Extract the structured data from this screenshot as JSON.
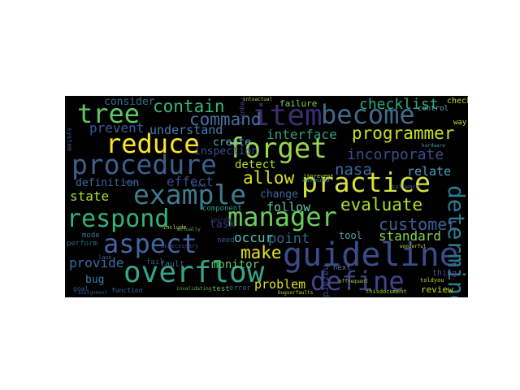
{
  "words": [
    {
      "text": "guideline",
      "color": "#3b4c8c"
    },
    {
      "text": "overflow",
      "color": "#37a48a"
    },
    {
      "text": "procedure",
      "color": "#3c5f8d"
    },
    {
      "text": "forget",
      "color": "#9ad84a"
    },
    {
      "text": "item",
      "color": "#3a2c6e"
    },
    {
      "text": "become",
      "color": "#3f6a8b"
    },
    {
      "text": "practice",
      "color": "#d6e040"
    },
    {
      "text": "example",
      "color": "#3f7b8d"
    },
    {
      "text": "manager",
      "color": "#6acd5b"
    },
    {
      "text": "respond",
      "color": "#2eb37c"
    },
    {
      "text": "aspect",
      "color": "#4166a0"
    },
    {
      "text": "define",
      "color": "#414487"
    },
    {
      "text": "reduce",
      "color": "#fde725"
    },
    {
      "text": "tree",
      "color": "#5ec962"
    },
    {
      "text": "determine",
      "color": "#2a7b8e"
    },
    {
      "text": "contain",
      "color": "#35b779"
    },
    {
      "text": "command",
      "color": "#4a6ea3"
    },
    {
      "text": "programmer",
      "color": "#c8e020"
    },
    {
      "text": "incorporate",
      "color": "#3f4a8a"
    },
    {
      "text": "checklist",
      "color": "#29af7f"
    },
    {
      "text": "evaluate",
      "color": "#b5de2b"
    },
    {
      "text": "customer",
      "color": "#3e5f99"
    },
    {
      "text": "nasa",
      "color": "#3d6aa0"
    },
    {
      "text": "allow",
      "color": "#dde318"
    },
    {
      "text": "make",
      "color": "#e5e419"
    },
    {
      "text": "interface",
      "color": "#2fa07e"
    },
    {
      "text": "understand",
      "color": "#437ab0"
    },
    {
      "text": "prevent",
      "color": "#3c5aa0"
    },
    {
      "text": "state",
      "color": "#a6db35"
    },
    {
      "text": "definition",
      "color": "#3b6aa3"
    },
    {
      "text": "effect",
      "color": "#3a4c90"
    },
    {
      "text": "create",
      "color": "#5aa8c0"
    },
    {
      "text": "inspection",
      "color": "#3a4f92"
    },
    {
      "text": "detect",
      "color": "#b8de29"
    },
    {
      "text": "relate",
      "color": "#4aa0c0"
    },
    {
      "text": "standard",
      "color": "#86d549"
    },
    {
      "text": "point",
      "color": "#2f6a8f"
    },
    {
      "text": "follow",
      "color": "#62c5b0"
    },
    {
      "text": "change",
      "color": "#3d6aa0"
    },
    {
      "text": "occur",
      "color": "#55c0b2"
    },
    {
      "text": "provide",
      "color": "#3c6a9f"
    },
    {
      "text": "monitor",
      "color": "#5ec962"
    },
    {
      "text": "problem",
      "color": "#dfe318"
    },
    {
      "text": "bug",
      "color": "#3f78a8"
    },
    {
      "text": "consider",
      "color": "#2f6f8e"
    },
    {
      "text": "task",
      "color": "#3a3a7a"
    },
    {
      "text": "review",
      "color": "#c2df23"
    },
    {
      "text": "tool",
      "color": "#4fa8b0"
    },
    {
      "text": "failure",
      "color": "#7ad151"
    },
    {
      "text": "check",
      "color": "#bddf26"
    },
    {
      "text": "control",
      "color": "#6aa8c0"
    },
    {
      "text": "way",
      "color": "#c0dd30"
    },
    {
      "text": "hazard",
      "color": "#3a4a90"
    },
    {
      "text": "fault",
      "color": "#3f6a99"
    },
    {
      "text": "mode",
      "color": "#3a7aa0"
    },
    {
      "text": "perform",
      "color": "#2a6a8a"
    },
    {
      "text": "fail",
      "color": "#2a5f80"
    },
    {
      "text": "need",
      "color": "#3a5a90"
    },
    {
      "text": "thing",
      "color": "#5a4a90"
    },
    {
      "text": "component",
      "color": "#2f9a8a"
    },
    {
      "text": "error",
      "color": "#2f6a8a"
    },
    {
      "text": "test",
      "color": "#6ac060"
    },
    {
      "text": "next",
      "color": "#5a7ab0"
    },
    {
      "text": "goal",
      "color": "#3a5a8a"
    },
    {
      "text": "function",
      "color": "#3a6a9a"
    },
    {
      "text": "thisdocument",
      "color": "#b0d030"
    },
    {
      "text": "toldyou",
      "color": "#c0d030"
    },
    {
      "text": "bugsorfaults",
      "color": "#c8d040"
    },
    {
      "text": "require",
      "color": "#4a4a8a"
    },
    {
      "text": "intoactual",
      "color": "#b0d040"
    },
    {
      "text": "include",
      "color": "#c0d040"
    },
    {
      "text": "look",
      "color": "#3a5a8a"
    },
    {
      "text": "invalidating",
      "color": "#6ab060"
    },
    {
      "text": "assignment",
      "color": "#2a5a80"
    },
    {
      "text": "itprevent",
      "color": "#c0d040"
    },
    {
      "text": "actually",
      "color": "#5ab060"
    },
    {
      "text": "unnecessary",
      "color": "#3a4a8a"
    },
    {
      "text": "offrequent",
      "color": "#b0d040"
    },
    {
      "text": "wonderful",
      "color": "#c0d040"
    },
    {
      "text": "mean",
      "color": "#3a4a8a"
    },
    {
      "text": "break",
      "color": "#2a5a80"
    },
    {
      "text": "advanced",
      "color": "#2f8a8a"
    },
    {
      "text": "system",
      "color": "#3a5a90"
    },
    {
      "text": "hardware",
      "color": "#4a9aa0"
    },
    {
      "text": "software",
      "color": "#3a6a9a"
    },
    {
      "text": "operator",
      "color": "#3a3a80"
    }
  ]
}
